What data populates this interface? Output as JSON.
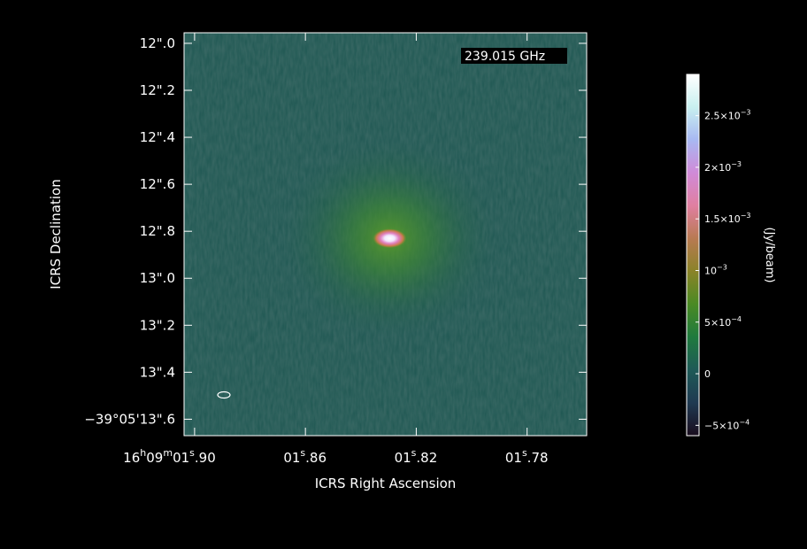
{
  "chart_data": {
    "type": "heatmap",
    "frequency_label": "239.015 GHz",
    "xlabel": "ICRS Right Ascension",
    "ylabel": "ICRS Declination",
    "colorbar_label": "(Jy/beam)",
    "x_ticks": [
      {
        "value": -0.09,
        "main": "16",
        "sup": "h",
        "main2": "09",
        "sup2": "m",
        "main3": "01",
        "sup3": "s",
        "tail": ".90"
      },
      {
        "value": -0.05,
        "main": "01",
        "sup": "s",
        "tail": ".86"
      },
      {
        "value": -0.01,
        "main": "01",
        "sup": "s",
        "tail": ".82"
      },
      {
        "value": 0.03,
        "main": "01",
        "sup": "s",
        "tail": ".78"
      }
    ],
    "y_ticks": [
      {
        "value": 12.0,
        "label": "12\".0"
      },
      {
        "value": 12.2,
        "label": "12\".2"
      },
      {
        "value": 12.4,
        "label": "12\".4"
      },
      {
        "value": 12.6,
        "label": "12\".6"
      },
      {
        "value": 12.8,
        "label": "12\".8"
      },
      {
        "value": 13.0,
        "label": "13\".0"
      },
      {
        "value": 13.2,
        "label": "13\".2"
      },
      {
        "value": 13.4,
        "label": "13\".4"
      },
      {
        "value": 13.6,
        "label": "−39°05'13\".6"
      }
    ],
    "xlim": [
      -0.0938,
      0.0515
    ],
    "ylim": [
      11.955,
      13.67
    ],
    "source": {
      "x": -0.0196,
      "y": 12.83,
      "peak": 0.0028
    },
    "colorbar": {
      "vmin": -0.0006,
      "vmax": 0.0029,
      "ticks": [
        {
          "value": 0.0025,
          "main": "2.5×10",
          "exp": "−3"
        },
        {
          "value": 0.002,
          "main": "2×10",
          "exp": "−3"
        },
        {
          "value": 0.0015,
          "main": "1.5×10",
          "exp": "−3"
        },
        {
          "value": 0.001,
          "main": "10",
          "exp": "−3"
        },
        {
          "value": 0.0005,
          "main": "5×10",
          "exp": "−4"
        },
        {
          "value": 0.0,
          "main": "0",
          "exp": ""
        },
        {
          "value": -0.0005,
          "main": "−5×10",
          "exp": "−4"
        }
      ],
      "colormap": [
        "#1a0d1e",
        "#1f3a52",
        "#1e5a57",
        "#1f7a3e",
        "#4a8a24",
        "#8a8328",
        "#b87a52",
        "#e07fa0",
        "#d08ad8",
        "#a8b8f2",
        "#c8f0f0",
        "#ffffff"
      ]
    }
  }
}
